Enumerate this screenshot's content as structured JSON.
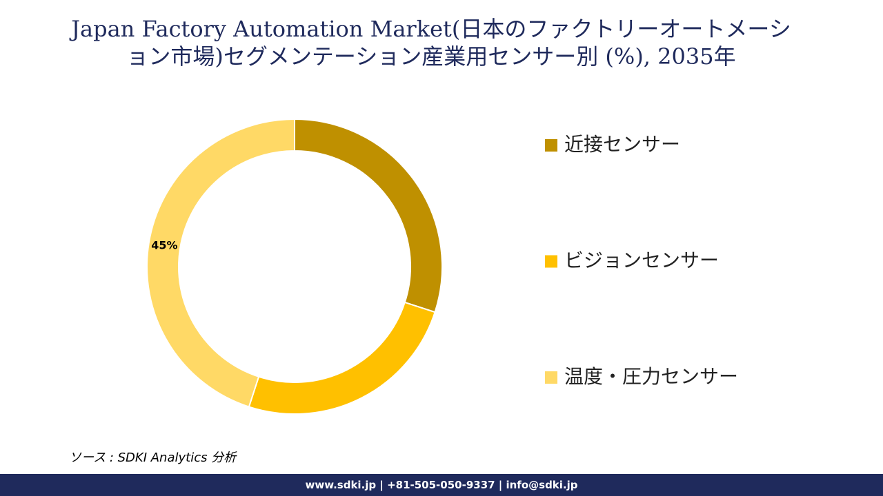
{
  "chart_data": {
    "type": "donut",
    "title": "Japan Factory Automation Market(日本のファクトリーオートメーション市場)セグメンテーション産業用センサー別 (%), 2035年",
    "categories": [
      "近接センサー",
      "ビジョンセンサー",
      "温度・圧力センサー"
    ],
    "values": [
      30,
      25,
      45
    ],
    "value_labels": [
      null,
      null,
      "45%"
    ],
    "colors": [
      "#BF9000",
      "#FFC000",
      "#FFD966"
    ],
    "source": "ソース : SDKI Analytics 分析",
    "footer": "www.sdki.jp | +81-505-050-9337 | info@sdki.jp"
  }
}
